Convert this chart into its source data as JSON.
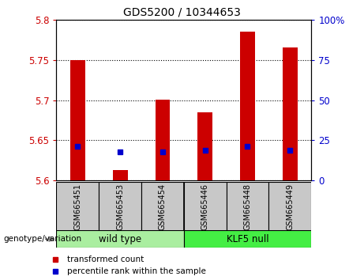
{
  "title": "GDS5200 / 10344653",
  "categories": [
    "GSM665451",
    "GSM665453",
    "GSM665454",
    "GSM665446",
    "GSM665448",
    "GSM665449"
  ],
  "groups": [
    "wild type",
    "wild type",
    "wild type",
    "KLF5 null",
    "KLF5 null",
    "KLF5 null"
  ],
  "group_labels": [
    "wild type",
    "KLF5 null"
  ],
  "wt_color": "#AAEEA0",
  "klf_color": "#44EE44",
  "bar_base": 5.6,
  "red_tops": [
    5.75,
    5.613,
    5.701,
    5.685,
    5.785,
    5.765
  ],
  "blue_dots": [
    5.643,
    5.636,
    5.636,
    5.638,
    5.643,
    5.638
  ],
  "ylim_left": [
    5.6,
    5.8
  ],
  "ylim_right": [
    0,
    100
  ],
  "yticks_left": [
    5.6,
    5.65,
    5.7,
    5.75,
    5.8
  ],
  "yticks_right": [
    0,
    25,
    50,
    75,
    100
  ],
  "left_color": "#CC0000",
  "right_color": "#0000CC",
  "bar_color": "#CC0000",
  "dot_color": "#0000CC",
  "bg_color": "#C8C8C8",
  "plot_bg": "#FFFFFF",
  "legend_items": [
    "transformed count",
    "percentile rank within the sample"
  ],
  "genotype_label": "genotype/variation"
}
